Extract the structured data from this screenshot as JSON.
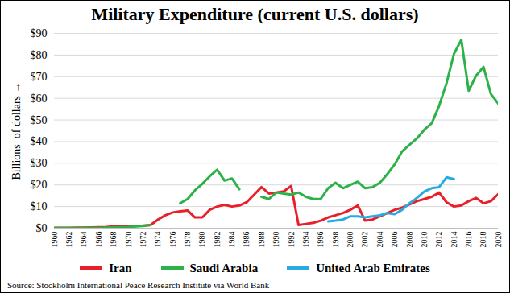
{
  "chart_data": {
    "type": "line",
    "title": "Military Expenditure (current U.S. dollars)",
    "y_label": "Billions  of dollars",
    "source": "Source:  Stockholm International Peace Research Institute via World Bank",
    "x": [
      1960,
      1961,
      1962,
      1963,
      1964,
      1965,
      1966,
      1967,
      1968,
      1969,
      1970,
      1971,
      1972,
      1973,
      1974,
      1975,
      1976,
      1977,
      1978,
      1979,
      1980,
      1981,
      1982,
      1983,
      1984,
      1985,
      1986,
      1987,
      1988,
      1989,
      1990,
      1991,
      1992,
      1993,
      1994,
      1995,
      1996,
      1997,
      1998,
      1999,
      2000,
      2001,
      2002,
      2003,
      2004,
      2005,
      2006,
      2007,
      2008,
      2009,
      2010,
      2011,
      2012,
      2013,
      2014,
      2015,
      2016,
      2017,
      2018,
      2019,
      2020
    ],
    "series": [
      {
        "name": "Iran",
        "color": "#e8202a",
        "values": [
          0.2,
          0.2,
          0.2,
          0.3,
          0.3,
          0.4,
          0.5,
          0.6,
          0.8,
          0.8,
          0.9,
          1.0,
          1.2,
          1.5,
          4.0,
          6.0,
          7.3,
          7.8,
          8.2,
          5.0,
          5.0,
          8.5,
          10.0,
          10.8,
          10.0,
          10.5,
          12.0,
          15.5,
          19.0,
          16.0,
          16.5,
          17.0,
          19.5,
          1.5,
          2.0,
          2.5,
          3.5,
          5.0,
          6.0,
          7.0,
          8.5,
          10.5,
          3.5,
          4.0,
          5.5,
          7.0,
          8.5,
          9.5,
          11.0,
          12.5,
          13.5,
          14.5,
          16.5,
          12.0,
          10.0,
          10.5,
          12.5,
          14.0,
          11.5,
          12.5,
          15.8
        ]
      },
      {
        "name": "Saudi Arabia",
        "color": "#2db24a",
        "values": [
          0.1,
          0.1,
          0.1,
          0.1,
          0.1,
          0.2,
          0.2,
          0.3,
          0.4,
          0.5,
          0.6,
          0.8,
          1.0,
          1.5,
          null,
          null,
          null,
          11.5,
          13.5,
          17.5,
          20.5,
          24.0,
          27.0,
          22.0,
          23.0,
          18.0,
          null,
          null,
          14.5,
          13.5,
          16.5,
          16.0,
          15.5,
          16.5,
          14.5,
          13.5,
          13.5,
          18.5,
          21.0,
          18.5,
          20.0,
          21.5,
          18.5,
          19.0,
          21.0,
          25.0,
          29.5,
          35.5,
          38.5,
          41.5,
          45.5,
          48.5,
          56.5,
          67.0,
          80.5,
          87.0,
          63.5,
          70.5,
          74.5,
          62.0,
          57.5
        ]
      },
      {
        "name": "United Arab Emirates",
        "color": "#29abe2",
        "values": [
          null,
          null,
          null,
          null,
          null,
          null,
          null,
          null,
          null,
          null,
          null,
          null,
          null,
          null,
          null,
          null,
          null,
          null,
          null,
          null,
          null,
          null,
          null,
          null,
          null,
          null,
          null,
          null,
          null,
          null,
          null,
          null,
          null,
          null,
          null,
          null,
          null,
          3.2,
          3.5,
          4.0,
          5.5,
          5.5,
          5.0,
          5.5,
          6.0,
          7.0,
          6.5,
          8.5,
          11.5,
          14.0,
          17.0,
          18.5,
          19.0,
          23.5,
          22.7,
          null,
          null,
          null,
          null,
          null,
          null
        ]
      }
    ],
    "xlim": [
      1960,
      2020
    ],
    "xticks": [
      1960,
      1962,
      1964,
      1966,
      1968,
      1970,
      1972,
      1974,
      1976,
      1978,
      1980,
      1982,
      1984,
      1986,
      1988,
      1990,
      1992,
      1994,
      1996,
      1998,
      2000,
      2002,
      2004,
      2006,
      2008,
      2010,
      2012,
      2014,
      2016,
      2018,
      2020
    ],
    "ylim": [
      0,
      90
    ],
    "yticks": [
      {
        "value": 0,
        "label": "$0"
      },
      {
        "value": 10,
        "label": "$10"
      },
      {
        "value": 20,
        "label": "$20"
      },
      {
        "value": 30,
        "label": "$30"
      },
      {
        "value": 40,
        "label": "$40"
      },
      {
        "value": 50,
        "label": "$50"
      },
      {
        "value": 60,
        "label": "$60"
      },
      {
        "value": 70,
        "label": "$70"
      },
      {
        "value": 80,
        "label": "$80"
      },
      {
        "value": 90,
        "label": "$90"
      }
    ],
    "grid": true,
    "legend": "bottom"
  }
}
